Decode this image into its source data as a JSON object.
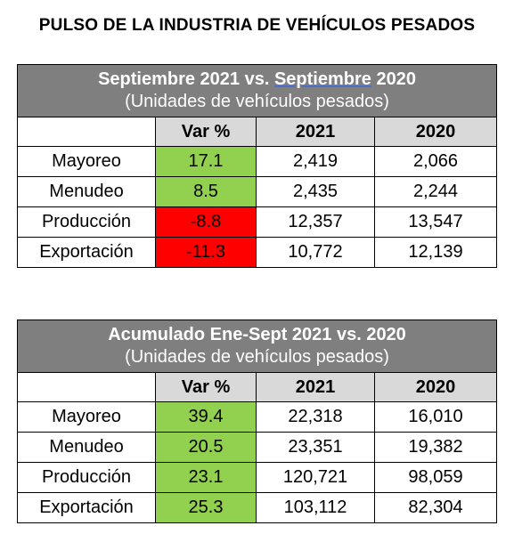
{
  "title": "PULSO DE LA INDUSTRIA DE VEHÍCULOS PESADOS",
  "colors": {
    "header_bg": "#7f7f7f",
    "colhead_bg": "#d9d9d9",
    "positive": "#92d050",
    "negative": "#ff0000"
  },
  "table1": {
    "title_a": "Septiembre 2021 vs. ",
    "title_b": "Septiembre",
    "title_c": " 2020",
    "subtitle": "(Unidades de vehículos pesados)",
    "columns": [
      "Var %",
      "2021",
      "2020"
    ],
    "rows": [
      {
        "label": "Mayoreo",
        "var": "17.1",
        "y2021": "2,419",
        "y2020": "2,066"
      },
      {
        "label": "Menudeo",
        "var": "8.5",
        "y2021": "2,435",
        "y2020": "2,244"
      },
      {
        "label": "Producción",
        "var": "-8.8",
        "y2021": "12,357",
        "y2020": "13,547"
      },
      {
        "label": "Exportación",
        "var": "-11.3",
        "y2021": "10,772",
        "y2020": "12,139"
      }
    ]
  },
  "table2": {
    "title": "Acumulado Ene-Sept 2021 vs. 2020",
    "subtitle": "(Unidades de vehículos pesados)",
    "columns": [
      "Var %",
      "2021",
      "2020"
    ],
    "rows": [
      {
        "label": "Mayoreo",
        "var": "39.4",
        "y2021": "22,318",
        "y2020": "16,010"
      },
      {
        "label": "Menudeo",
        "var": "20.5",
        "y2021": "23,351",
        "y2020": "19,382"
      },
      {
        "label": "Producción",
        "var": "23.1",
        "y2021": "120,721",
        "y2020": "98,059"
      },
      {
        "label": "Exportación",
        "var": "25.3",
        "y2021": "103,112",
        "y2020": "82,304"
      }
    ]
  }
}
